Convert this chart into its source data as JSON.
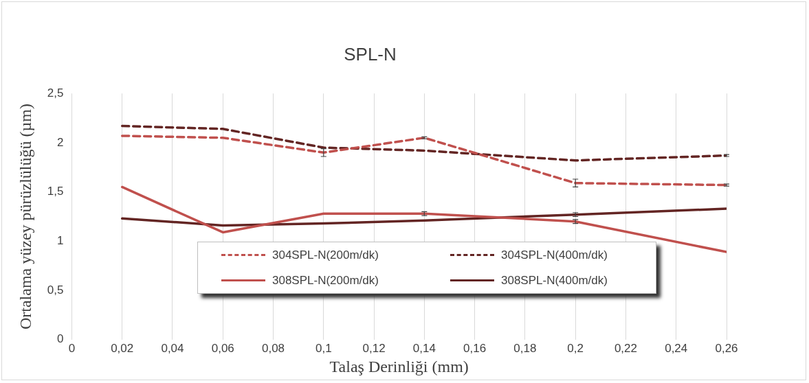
{
  "chart_data": {
    "type": "line",
    "title": "SPL-N",
    "xlabel": "Talaş Derinliği (mm)",
    "ylabel": "Ortalama yüzey pürüzlülüğü (µm)",
    "xlim": [
      0,
      0.26
    ],
    "xticks": [
      0,
      {
        "value": 0.02,
        "label": "0,02"
      },
      {
        "value": 0.04,
        "label": "0,04"
      },
      {
        "value": 0.06,
        "label": "0,06"
      },
      {
        "value": 0.08,
        "label": "0,08"
      },
      {
        "value": 0.1,
        "label": "0,1"
      },
      {
        "value": 0.12,
        "label": "0,12"
      },
      {
        "value": 0.14,
        "label": "0,14"
      },
      {
        "value": 0.16,
        "label": "0,16"
      },
      {
        "value": 0.18,
        "label": "0,18"
      },
      {
        "value": 0.2,
        "label": "0,2"
      },
      {
        "value": 0.22,
        "label": "0,22"
      },
      {
        "value": 0.24,
        "label": "0,24"
      },
      {
        "value": 0.26,
        "label": "0,26"
      }
    ],
    "ylim": [
      0,
      2.5
    ],
    "yticks": [
      0,
      {
        "value": 0.5,
        "label": "0,5"
      },
      1,
      {
        "value": 1.5,
        "label": "1,5"
      },
      2,
      {
        "value": 2.5,
        "label": "2,5"
      }
    ],
    "x": [
      0.02,
      0.06,
      0.1,
      0.14,
      0.2,
      0.26
    ],
    "grid": "x",
    "legend": "bottom",
    "marker": "none",
    "series": [
      {
        "name": "304SPL-N(200m/dk)",
        "color": "#c0504d",
        "line_style": "dashed",
        "values": [
          2.07,
          2.05,
          1.9,
          2.05,
          1.59,
          1.57
        ],
        "errors": [
          null,
          null,
          0.04,
          0.01,
          0.04,
          0.01
        ]
      },
      {
        "name": "304SPL-N(400m/dk)",
        "color": "#632523",
        "line_style": "dashed",
        "values": [
          2.17,
          2.14,
          1.95,
          1.92,
          1.82,
          1.87
        ],
        "errors": [
          null,
          null,
          null,
          null,
          null,
          0.01
        ]
      },
      {
        "name": "308SPL-N(200m/dk)",
        "color": "#c0504d",
        "line_style": "solid",
        "values": [
          1.55,
          1.09,
          1.28,
          1.28,
          1.2,
          0.89
        ],
        "errors": [
          null,
          null,
          null,
          0.02,
          0.02,
          null
        ]
      },
      {
        "name": "308SPL-N(400m/dk)",
        "color": "#632523",
        "line_style": "solid",
        "values": [
          1.23,
          1.16,
          1.18,
          1.21,
          1.27,
          1.33
        ],
        "errors": [
          null,
          null,
          null,
          null,
          0.02,
          null
        ]
      }
    ]
  }
}
